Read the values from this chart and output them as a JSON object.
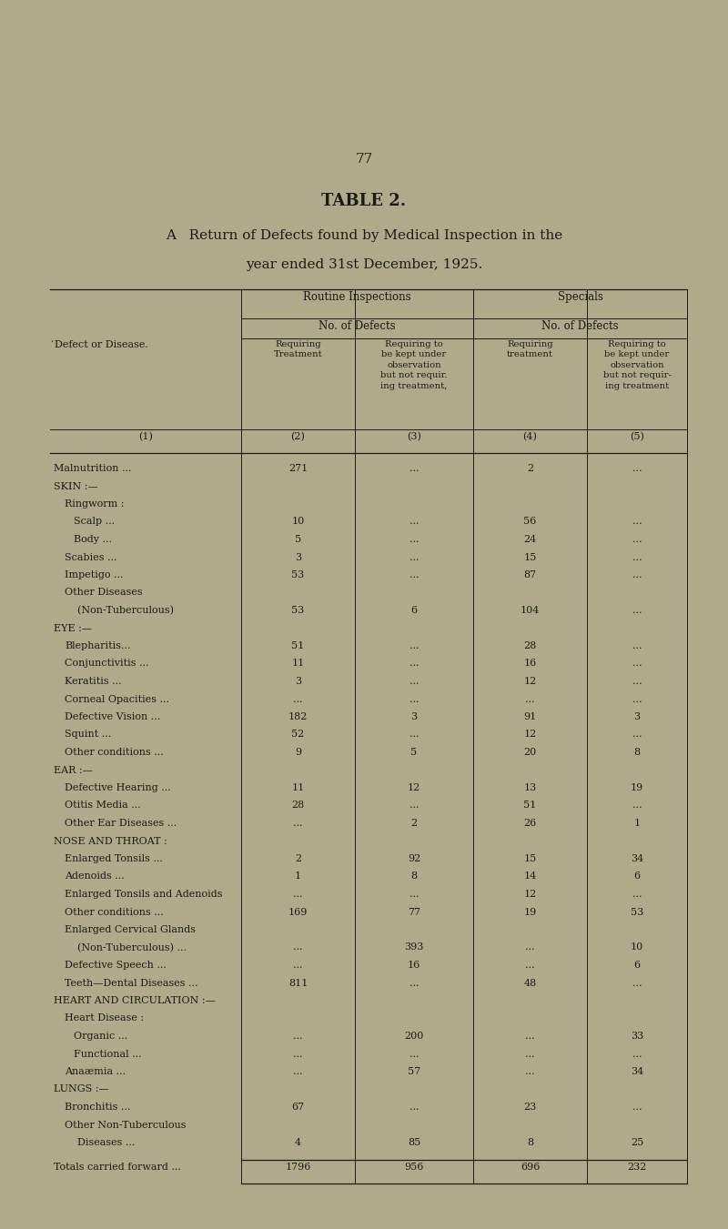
{
  "page_number": "77",
  "title_line1": "TABLE 2.",
  "title_line2": "A   Return of Defects found by Medical Inspection in the",
  "title_line3": "year ended 31st December, 1925.",
  "bg_color": "#b0aa8a",
  "text_color": "#1a1a1a",
  "rows": [
    {
      "label": "Malnutrition ...",
      "indent": 0,
      "section_header": false,
      "c2": "271",
      "c3": "...",
      "c4": "2",
      "c5": "..."
    },
    {
      "label": "SKIN :—",
      "indent": 0,
      "section_header": true,
      "c2": "",
      "c3": "",
      "c4": "",
      "c5": ""
    },
    {
      "label": "Ringworm :",
      "indent": 1,
      "section_header": false,
      "c2": "",
      "c3": "",
      "c4": "",
      "c5": ""
    },
    {
      "label": "Scalp ...",
      "indent": 2,
      "section_header": false,
      "c2": "10",
      "c3": "...",
      "c4": "56",
      "c5": "..."
    },
    {
      "label": "Body ...",
      "indent": 2,
      "section_header": false,
      "c2": "5",
      "c3": "...",
      "c4": "24",
      "c5": "..."
    },
    {
      "label": "Scabies ...",
      "indent": 1,
      "section_header": false,
      "c2": "3",
      "c3": "...",
      "c4": "15",
      "c5": "..."
    },
    {
      "label": "Impetigo ...",
      "indent": 1,
      "section_header": false,
      "c2": "53",
      "c3": "...",
      "c4": "87",
      "c5": "..."
    },
    {
      "label": "Other Diseases",
      "indent": 1,
      "section_header": false,
      "c2": "",
      "c3": "",
      "c4": "",
      "c5": ""
    },
    {
      "label": "    (Non-Tuberculous)",
      "indent": 1,
      "section_header": false,
      "c2": "53",
      "c3": "6",
      "c4": "104",
      "c5": "..."
    },
    {
      "label": "EYE :—",
      "indent": 0,
      "section_header": true,
      "c2": "",
      "c3": "",
      "c4": "",
      "c5": ""
    },
    {
      "label": "Blepharitis...",
      "indent": 1,
      "section_header": false,
      "c2": "51",
      "c3": "...",
      "c4": "28",
      "c5": "..."
    },
    {
      "label": "Conjunctivitis ...",
      "indent": 1,
      "section_header": false,
      "c2": "11",
      "c3": "...",
      "c4": "16",
      "c5": "..."
    },
    {
      "label": "Keratitis ...",
      "indent": 1,
      "section_header": false,
      "c2": "3",
      "c3": "...",
      "c4": "12",
      "c5": "..."
    },
    {
      "label": "Corneal Opacities ...",
      "indent": 1,
      "section_header": false,
      "c2": "...",
      "c3": "...",
      "c4": "...",
      "c5": "..."
    },
    {
      "label": "Defective Vision ...",
      "indent": 1,
      "section_header": false,
      "c2": "182",
      "c3": "3",
      "c4": "91",
      "c5": "3"
    },
    {
      "label": "Squint ...",
      "indent": 1,
      "section_header": false,
      "c2": "52",
      "c3": "...",
      "c4": "12",
      "c5": "..."
    },
    {
      "label": "Other conditions ...",
      "indent": 1,
      "section_header": false,
      "c2": "9",
      "c3": "5",
      "c4": "20",
      "c5": "8"
    },
    {
      "label": "EAR :—",
      "indent": 0,
      "section_header": true,
      "c2": "",
      "c3": "",
      "c4": "",
      "c5": ""
    },
    {
      "label": "Defective Hearing ...",
      "indent": 1,
      "section_header": false,
      "c2": "11",
      "c3": "12",
      "c4": "13",
      "c5": "19"
    },
    {
      "label": "Otitis Media ...",
      "indent": 1,
      "section_header": false,
      "c2": "28",
      "c3": "...",
      "c4": "51",
      "c5": "..."
    },
    {
      "label": "Other Ear Diseases ...",
      "indent": 1,
      "section_header": false,
      "c2": "...",
      "c3": "2",
      "c4": "26",
      "c5": "1"
    },
    {
      "label": "NOSE AND THROAT :",
      "indent": 0,
      "section_header": true,
      "c2": "",
      "c3": "",
      "c4": "",
      "c5": ""
    },
    {
      "label": "Enlarged Tonsils ...",
      "indent": 1,
      "section_header": false,
      "c2": "2",
      "c3": "92",
      "c4": "15",
      "c5": "34"
    },
    {
      "label": "Adenoids ...",
      "indent": 1,
      "section_header": false,
      "c2": "1",
      "c3": "8",
      "c4": "14",
      "c5": "6"
    },
    {
      "label": "Enlarged Tonsils and Adenoids",
      "indent": 1,
      "section_header": false,
      "c2": "...",
      "c3": "...",
      "c4": "12",
      "c5": "..."
    },
    {
      "label": "Other conditions ...",
      "indent": 1,
      "section_header": false,
      "c2": "169",
      "c3": "77",
      "c4": "19",
      "c5": "53"
    },
    {
      "label": "Enlarged Cervical Glands",
      "indent": 1,
      "section_header": false,
      "c2": "",
      "c3": "",
      "c4": "",
      "c5": ""
    },
    {
      "label": "    (Non-Tuberculous) ...",
      "indent": 1,
      "section_header": false,
      "c2": "...",
      "c3": "393",
      "c4": "...",
      "c5": "10"
    },
    {
      "label": "Defective Speech ...",
      "indent": 1,
      "section_header": false,
      "c2": "...",
      "c3": "16",
      "c4": "...",
      "c5": "6"
    },
    {
      "label": "Teeth—Dental Diseases ...",
      "indent": 1,
      "section_header": false,
      "c2": "811",
      "c3": "...",
      "c4": "48",
      "c5": "..."
    },
    {
      "label": "HEART AND CIRCULATION :—",
      "indent": 0,
      "section_header": true,
      "c2": "",
      "c3": "",
      "c4": "",
      "c5": ""
    },
    {
      "label": "Heart Disease :",
      "indent": 1,
      "section_header": false,
      "c2": "",
      "c3": "",
      "c4": "",
      "c5": ""
    },
    {
      "label": "Organic ...",
      "indent": 2,
      "section_header": false,
      "c2": "...",
      "c3": "200",
      "c4": "...",
      "c5": "33"
    },
    {
      "label": "Functional ...",
      "indent": 2,
      "section_header": false,
      "c2": "...",
      "c3": "...",
      "c4": "...",
      "c5": "..."
    },
    {
      "label": "Anaæmia ...",
      "indent": 1,
      "section_header": false,
      "c2": "...",
      "c3": "57",
      "c4": "...",
      "c5": "34"
    },
    {
      "label": "LUNGS :—",
      "indent": 0,
      "section_header": true,
      "c2": "",
      "c3": "",
      "c4": "",
      "c5": ""
    },
    {
      "label": "Bronchitis ...",
      "indent": 1,
      "section_header": false,
      "c2": "67",
      "c3": "...",
      "c4": "23",
      "c5": "..."
    },
    {
      "label": "Other Non-Tuberculous",
      "indent": 1,
      "section_header": false,
      "c2": "",
      "c3": "",
      "c4": "",
      "c5": ""
    },
    {
      "label": "    Diseases ...",
      "indent": 1,
      "section_header": false,
      "c2": "4",
      "c3": "85",
      "c4": "8",
      "c5": "25"
    }
  ],
  "totals_label": "Totals carried forward ...",
  "totals": [
    "1796",
    "956",
    "696",
    "232"
  ]
}
